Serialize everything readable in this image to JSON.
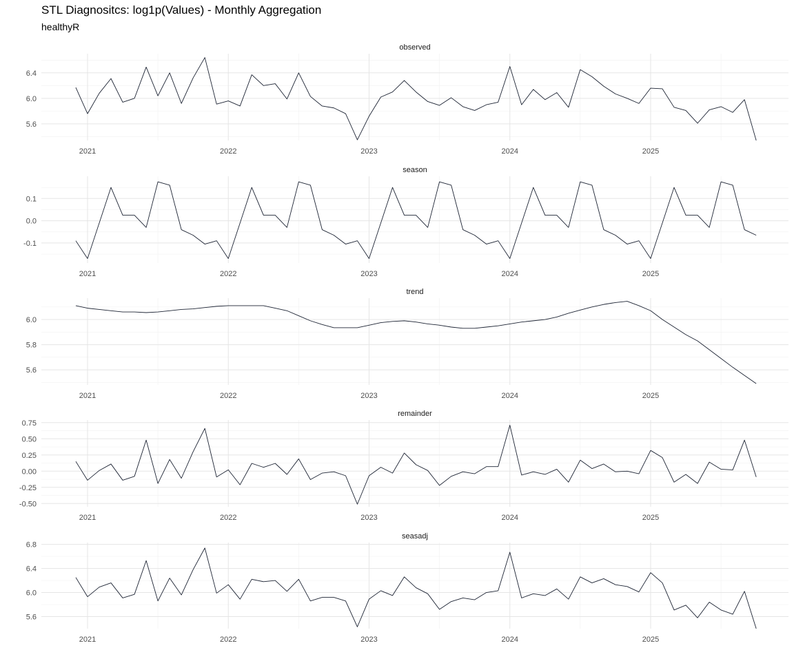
{
  "title": "STL Diagnositcs: log1p(Values) - Monthly Aggregation",
  "subtitle": "healthyR",
  "chart_data": [
    {
      "type": "line",
      "panel": "observed",
      "x_start": "2020-12",
      "x_ticks": [
        "2021",
        "2022",
        "2023",
        "2024",
        "2025"
      ],
      "y_ticks": [
        "5.6",
        "6.0",
        "6.4"
      ],
      "ylim": [
        5.34,
        6.7
      ],
      "values": [
        6.17,
        5.76,
        6.08,
        6.31,
        5.94,
        6.0,
        6.49,
        6.04,
        6.4,
        5.92,
        6.32,
        6.64,
        5.91,
        5.96,
        5.88,
        6.37,
        6.2,
        6.23,
        5.99,
        6.4,
        6.03,
        5.88,
        5.85,
        5.76,
        5.35,
        5.72,
        6.02,
        6.1,
        6.28,
        6.1,
        5.95,
        5.89,
        6.01,
        5.87,
        5.81,
        5.9,
        5.94,
        6.5,
        5.9,
        6.14,
        5.98,
        6.09,
        5.86,
        6.45,
        6.34,
        6.19,
        6.07,
        6.0,
        5.92,
        6.16,
        6.15,
        5.86,
        5.81,
        5.61,
        5.82,
        5.87,
        5.78,
        5.98,
        5.34
      ]
    },
    {
      "type": "line",
      "panel": "season",
      "x_start": "2020-12",
      "x_ticks": [
        "2021",
        "2022",
        "2023",
        "2024",
        "2025"
      ],
      "y_ticks": [
        "-0.1",
        "0.0",
        "0.1"
      ],
      "ylim": [
        -0.19,
        0.2
      ],
      "values": [
        -0.09,
        -0.17,
        -0.01,
        0.15,
        0.025,
        0.025,
        -0.03,
        0.175,
        0.16,
        -0.04,
        -0.065,
        -0.105,
        -0.09,
        -0.17,
        -0.01,
        0.15,
        0.025,
        0.025,
        -0.03,
        0.175,
        0.16,
        -0.04,
        -0.065,
        -0.105,
        -0.09,
        -0.17,
        -0.01,
        0.15,
        0.025,
        0.025,
        -0.03,
        0.175,
        0.16,
        -0.04,
        -0.065,
        -0.105,
        -0.09,
        -0.17,
        -0.01,
        0.15,
        0.025,
        0.025,
        -0.03,
        0.175,
        0.16,
        -0.04,
        -0.065,
        -0.105,
        -0.09,
        -0.17,
        -0.01,
        0.15,
        0.025,
        0.025,
        -0.03,
        0.175,
        0.16,
        -0.04,
        -0.065
      ]
    },
    {
      "type": "line",
      "panel": "trend",
      "x_start": "2020-12",
      "x_ticks": [
        "2021",
        "2022",
        "2023",
        "2024",
        "2025"
      ],
      "y_ticks": [
        "5.6",
        "5.8",
        "6.0"
      ],
      "ylim": [
        5.48,
        6.17
      ],
      "values": [
        6.11,
        6.09,
        6.08,
        6.07,
        6.06,
        6.06,
        6.055,
        6.06,
        6.07,
        6.08,
        6.085,
        6.095,
        6.105,
        6.11,
        6.11,
        6.11,
        6.11,
        6.09,
        6.07,
        6.03,
        5.99,
        5.96,
        5.935,
        5.935,
        5.935,
        5.955,
        5.975,
        5.985,
        5.99,
        5.98,
        5.965,
        5.955,
        5.94,
        5.93,
        5.93,
        5.94,
        5.95,
        5.965,
        5.98,
        5.99,
        6.0,
        6.02,
        6.05,
        6.075,
        6.1,
        6.12,
        6.135,
        6.145,
        6.11,
        6.07,
        6.0,
        5.94,
        5.88,
        5.83,
        5.76,
        5.69,
        5.62,
        5.555,
        5.49
      ]
    },
    {
      "type": "line",
      "panel": "remainder",
      "x_start": "2020-12",
      "x_ticks": [
        "2021",
        "2022",
        "2023",
        "2024",
        "2025"
      ],
      "y_ticks": [
        "-0.50",
        "-0.25",
        "0.00",
        "0.25",
        "0.50",
        "0.75"
      ],
      "ylim": [
        -0.55,
        0.79
      ],
      "values": [
        0.15,
        -0.14,
        0.01,
        0.11,
        -0.14,
        -0.08,
        0.48,
        -0.19,
        0.18,
        -0.11,
        0.3,
        0.66,
        -0.09,
        0.02,
        -0.21,
        0.12,
        0.06,
        0.12,
        -0.05,
        0.19,
        -0.13,
        -0.03,
        -0.01,
        -0.07,
        -0.51,
        -0.07,
        0.06,
        -0.03,
        0.28,
        0.1,
        0.01,
        -0.22,
        -0.08,
        -0.01,
        -0.04,
        0.07,
        0.07,
        0.71,
        -0.06,
        -0.01,
        -0.05,
        0.03,
        -0.17,
        0.17,
        0.04,
        0.11,
        -0.01,
        0.0,
        -0.04,
        0.32,
        0.21,
        -0.17,
        -0.05,
        -0.19,
        0.14,
        0.03,
        0.02,
        0.48,
        -0.09
      ]
    },
    {
      "type": "line",
      "panel": "seasadj",
      "x_start": "2020-12",
      "x_ticks": [
        "2021",
        "2022",
        "2023",
        "2024",
        "2025"
      ],
      "y_ticks": [
        "5.6",
        "6.0",
        "6.4",
        "6.8"
      ],
      "ylim": [
        5.4,
        6.83
      ],
      "values": [
        6.25,
        5.93,
        6.09,
        6.16,
        5.91,
        5.97,
        6.53,
        5.86,
        6.24,
        5.96,
        6.38,
        6.74,
        5.99,
        6.13,
        5.89,
        6.22,
        6.18,
        6.2,
        6.02,
        6.22,
        5.86,
        5.92,
        5.92,
        5.86,
        5.43,
        5.89,
        6.03,
        5.95,
        6.26,
        6.08,
        5.98,
        5.72,
        5.85,
        5.91,
        5.88,
        6.0,
        6.03,
        6.67,
        5.91,
        5.98,
        5.95,
        6.06,
        5.89,
        6.26,
        6.16,
        6.23,
        6.13,
        6.1,
        6.01,
        6.33,
        6.16,
        5.71,
        5.79,
        5.58,
        5.84,
        5.71,
        5.64,
        6.02,
        5.4
      ]
    }
  ]
}
